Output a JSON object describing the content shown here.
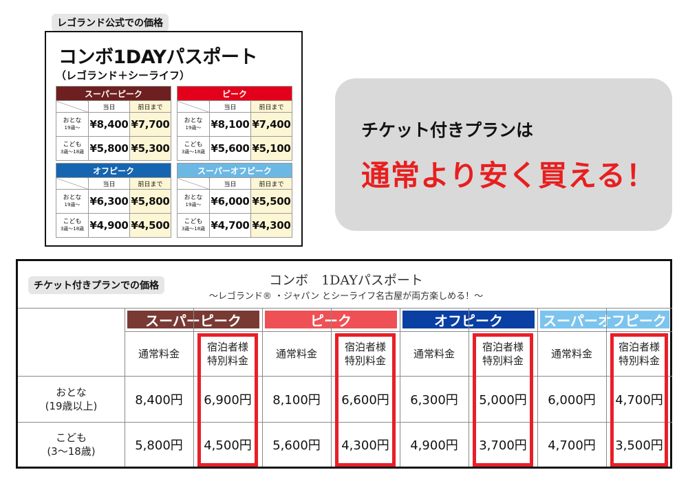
{
  "official": {
    "tag": "レゴランド公式での価格",
    "title": "コンボ1DAYパスポート",
    "subtitle": "（レゴランド＋シーライフ）",
    "tables": [
      {
        "name": "スーパーピーク",
        "color": "#6e1f1f",
        "cols": [
          "当日",
          "前日まで"
        ],
        "rows": [
          {
            "label": "おとな",
            "sub": "19歳〜",
            "prices": [
              "¥8,400",
              "¥7,700"
            ]
          },
          {
            "label": "こども",
            "sub": "3歳〜18歳",
            "prices": [
              "¥5,800",
              "¥5,300"
            ]
          }
        ]
      },
      {
        "name": "ピーク",
        "color": "#e3001b",
        "cols": [
          "当日",
          "前日まで"
        ],
        "rows": [
          {
            "label": "おとな",
            "sub": "19歳〜",
            "prices": [
              "¥8,100",
              "¥7,400"
            ]
          },
          {
            "label": "こども",
            "sub": "3歳〜18歳",
            "prices": [
              "¥5,600",
              "¥5,100"
            ]
          }
        ]
      },
      {
        "name": "オフピーク",
        "color": "#1565b0",
        "cols": [
          "当日",
          "前日まで"
        ],
        "rows": [
          {
            "label": "おとな",
            "sub": "19歳〜",
            "prices": [
              "¥6,300",
              "¥5,800"
            ]
          },
          {
            "label": "こども",
            "sub": "3歳〜18歳",
            "prices": [
              "¥4,900",
              "¥4,500"
            ]
          }
        ]
      },
      {
        "name": "スーパーオフピーク",
        "color": "#6cb8e4",
        "cols": [
          "当日",
          "前日まで"
        ],
        "rows": [
          {
            "label": "おとな",
            "sub": "19歳〜",
            "prices": [
              "¥6,000",
              "¥5,500"
            ]
          },
          {
            "label": "こども",
            "sub": "3歳〜18歳",
            "prices": [
              "¥4,700",
              "¥4,300"
            ]
          }
        ]
      }
    ]
  },
  "callout": {
    "line1": "チケット付きプランは",
    "line2": "通常より安く買える！"
  },
  "plan": {
    "tag": "チケット付きプランでの価格",
    "title": "コンボ　1DAYパスポート",
    "subtitle": "〜レゴランド® ・ジャパン とシーライフ名古屋が両方楽しめる！〜",
    "periods": [
      {
        "name": "スーパーピーク",
        "color": "#7a3a34"
      },
      {
        "name": "ピーク",
        "color": "#ef5055"
      },
      {
        "name": "オフピーク",
        "color": "#0a3fa3"
      },
      {
        "name": "スーパーオフピーク",
        "color": "#7cc4ee"
      }
    ],
    "subheaders": [
      "通常料金",
      "宿泊者様\n特別料金"
    ],
    "rows": [
      {
        "label": "おとな",
        "sub": "(19歳以上)",
        "prices": [
          "8,400円",
          "6,900円",
          "8,100円",
          "6,600円",
          "6,300円",
          "5,000円",
          "6,000円",
          "4,700円"
        ]
      },
      {
        "label": "こども",
        "sub": "(3〜18歳)",
        "prices": [
          "5,800円",
          "4,500円",
          "5,600円",
          "4,300円",
          "4,900円",
          "3,700円",
          "4,700円",
          "3,500円"
        ]
      }
    ],
    "highlight_color": "#e81f28"
  }
}
